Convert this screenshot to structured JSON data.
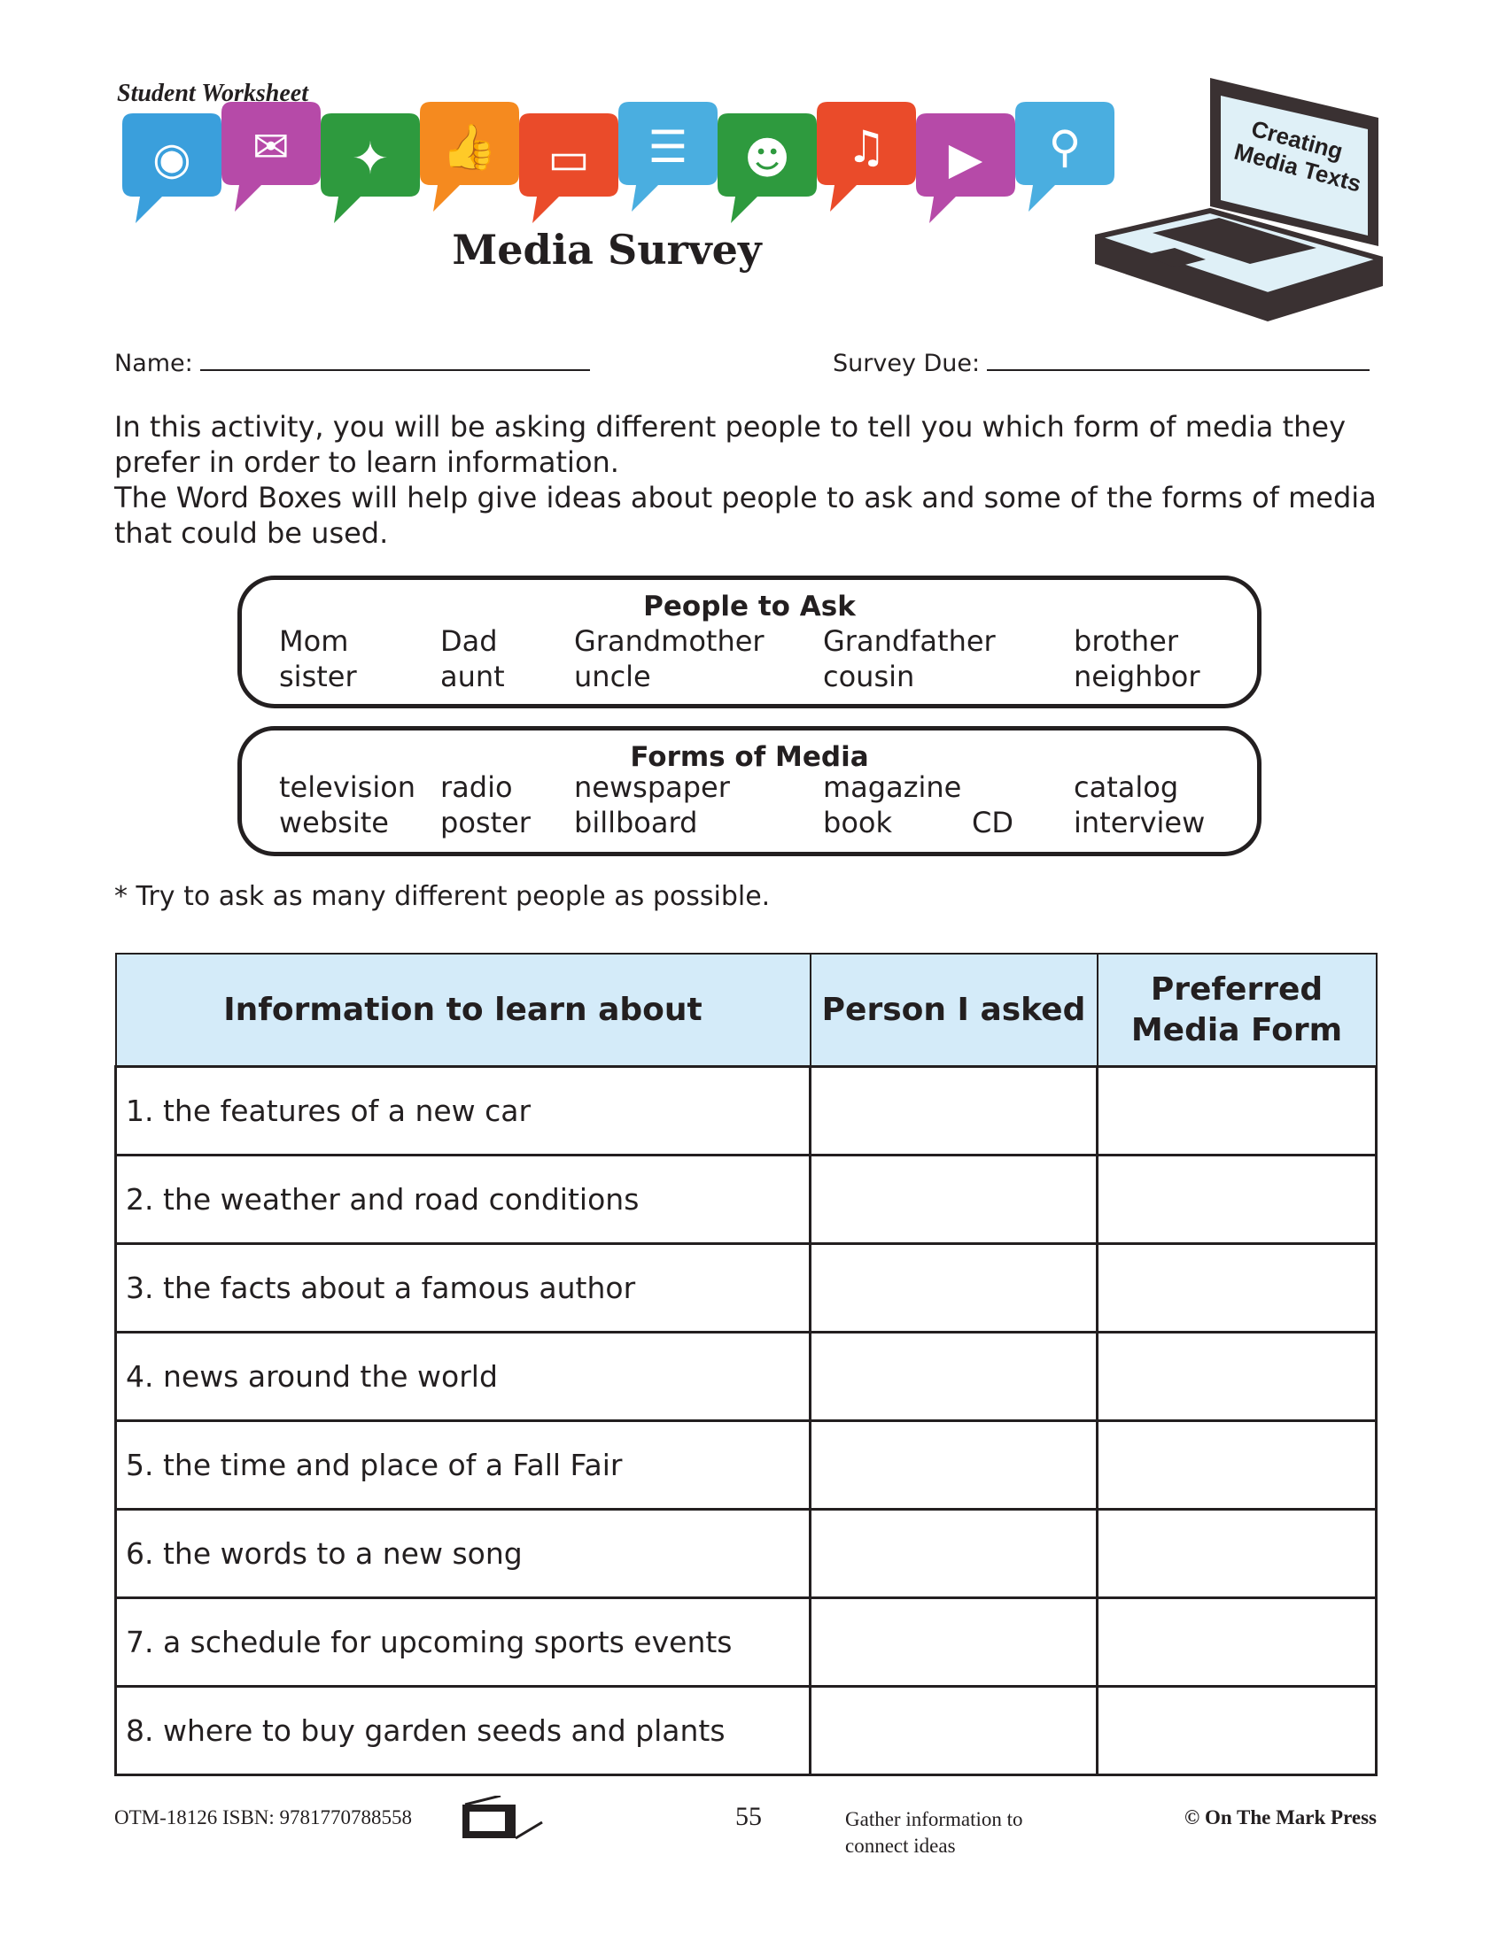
{
  "header": {
    "label": "Student Worksheet",
    "title": "Media Survey",
    "badge": "Creating Media Texts",
    "icons": [
      {
        "name": "rss-icon",
        "color": "#3a9fdc"
      },
      {
        "name": "mail-icon",
        "color": "#b64aa8"
      },
      {
        "name": "twitter-icon",
        "color": "#2e9a3e"
      },
      {
        "name": "thumbs-up-icon",
        "color": "#f58a1f"
      },
      {
        "name": "computer-icon",
        "color": "#ea4b2a"
      },
      {
        "name": "chat-icon",
        "color": "#4aaee0"
      },
      {
        "name": "people-icon",
        "color": "#2e9a3e"
      },
      {
        "name": "music-icon",
        "color": "#ea4b2a"
      },
      {
        "name": "play-icon",
        "color": "#b64aa8"
      },
      {
        "name": "search-icon",
        "color": "#4aaee0"
      }
    ]
  },
  "fields": {
    "name_label": "Name:",
    "due_label": "Survey Due:"
  },
  "intro": [
    "In this activity, you will be asking different people to tell you which form of media they prefer in order to learn information.",
    "The Word Boxes will help give ideas about people to ask and some of the forms of media that could be used."
  ],
  "people_box": {
    "title": "People to Ask",
    "rows": [
      [
        "Mom",
        "Dad",
        "Grandmother",
        "Grandfather",
        "brother"
      ],
      [
        "sister",
        "aunt",
        "uncle",
        "cousin",
        "neighbor"
      ]
    ]
  },
  "media_box": {
    "title": "Forms of Media",
    "rows": [
      [
        "television",
        "radio",
        "newspaper",
        "magazine",
        "catalog"
      ],
      [
        "website",
        "poster",
        "billboard",
        "book",
        "CD",
        "interview"
      ]
    ]
  },
  "note": "* Try to ask as many different people as possible.",
  "table": {
    "headers": [
      "Information to learn about",
      "Person I asked",
      "Preferred Media Form"
    ],
    "rows": [
      "1. the features of a new car",
      "2. the weather and road conditions",
      "3. the facts about a famous author",
      "4. news around the world",
      "5. the time and place of a Fall Fair",
      "6. the words to a new song",
      "7. a schedule for upcoming sports events",
      "8. where to buy garden seeds and plants"
    ]
  },
  "footer": {
    "code": "OTM-18126  ISBN: 9781770788558",
    "page": "55",
    "caption_1": "Gather information to",
    "caption_2": "connect ideas",
    "copyright": "© On The Mark Press"
  },
  "colors": {
    "table_header": "#d4ebf9",
    "ink": "#231f20"
  }
}
